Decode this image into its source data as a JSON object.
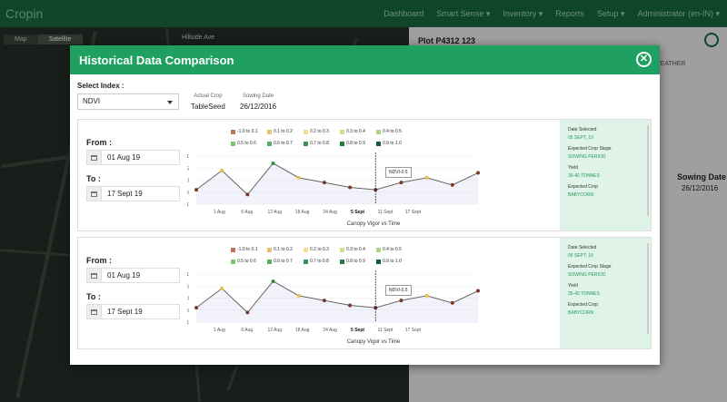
{
  "nav": {
    "brand": "Cropin",
    "links": [
      "Dashboard",
      "Smart Sense ▾",
      "Inventory ▾",
      "Reports",
      "Setup ▾",
      "Administrator (en-IN) ▾"
    ]
  },
  "map": {
    "tabs": [
      "Map",
      "Satellite"
    ],
    "labels": [
      "Hillside Ave"
    ]
  },
  "right_panel": {
    "plot_title": "Plot P4312 123",
    "weather_tab": "WEATHER",
    "sowing_label": "Sowing Date",
    "sowing_value": "26/12/2016"
  },
  "modal": {
    "title": "Historical Data Comparison",
    "select_label": "Select Index :",
    "select_value": "NDVI",
    "actual_crop_label": "Actual Crop",
    "actual_crop_value": "TableSeed",
    "sowing_date_label": "Sowing Date",
    "sowing_date_value": "26/12/2016"
  },
  "cards": [
    {
      "from_label": "From :",
      "from_value": "01 Aug 19",
      "to_label": "To :",
      "to_value": "17 Sept 19",
      "caption": "Canopy Vigor vs Time",
      "tooltip": "NDVI-0.5",
      "side": {
        "date_selected_label": "Date Selected",
        "date_selected_value": "05 SEPT, 19",
        "stage_label": "Expected Crop Stage",
        "stage_value": "SOWING PERIOD",
        "yield_label": "Yield",
        "yield_value": "35-40 TONNES",
        "crop_label": "Expected Crop",
        "crop_value": "BABYCORN"
      }
    },
    {
      "from_label": "From :",
      "from_value": "01 Aug 19",
      "to_label": "To :",
      "to_value": "17 Sept 19",
      "caption": "Canopy Vigor vs Time",
      "tooltip": "NDVI-0.5",
      "side": {
        "date_selected_label": "Date Selected",
        "date_selected_value": "05 SEPT, 19",
        "stage_label": "Expected Crop Stage",
        "stage_value": "SOWING PERIOD",
        "yield_label": "Yield",
        "yield_value": "35-40 TONNES",
        "crop_label": "Expected Crop",
        "crop_value": "BABYCORN"
      }
    }
  ],
  "legend": [
    {
      "label": "-1.0 to 0.1",
      "color": "#c0715a"
    },
    {
      "label": "0.1 to 0.2",
      "color": "#e8c07a"
    },
    {
      "label": "0.2 to 0.3",
      "color": "#f1dd8a"
    },
    {
      "label": "0.3 to 0.4",
      "color": "#cfe08a"
    },
    {
      "label": "0.4 to 0.5",
      "color": "#a9d67f"
    },
    {
      "label": "0.5 to 0.6",
      "color": "#7fc470"
    },
    {
      "label": "0.6 to 0.7",
      "color": "#57ae5f"
    },
    {
      "label": "0.7 to 0.8",
      "color": "#3a9453"
    },
    {
      "label": "0.8 to 0.9",
      "color": "#247a42"
    },
    {
      "label": "0.9 to 1.0",
      "color": "#145c31"
    }
  ],
  "chart_data": [
    {
      "type": "line",
      "caption": "Canopy Vigor vs Time",
      "x_ticks": [
        "1 Aug",
        "6 Aug",
        "12 Aug",
        "18 Aug",
        "24 Aug",
        "5 Sept",
        "11 Sept",
        "17 Sept"
      ],
      "y_ticks": [
        1,
        0.5,
        0,
        -0.5,
        -1
      ],
      "ylim": [
        -1,
        1
      ],
      "values": [
        -0.4,
        0.4,
        -0.6,
        0.7,
        0.1,
        -0.1,
        -0.3,
        -0.4,
        -0.1,
        0.1,
        -0.2,
        0.3
      ],
      "point_colors": [
        "#7a3a2a",
        "#e8c040",
        "#7a3a2a",
        "#2f8a4a",
        "#e8c040",
        "#7a3a2a",
        "#7a3a2a",
        "#5a2a2a",
        "#7a3a2a",
        "#e8c040",
        "#7a3a2a",
        "#7a3a2a"
      ],
      "marker": "5 Sept"
    },
    {
      "type": "line",
      "caption": "Canopy Vigor vs Time",
      "x_ticks": [
        "1 Aug",
        "6 Aug",
        "12 Aug",
        "18 Aug",
        "24 Aug",
        "5 Sept",
        "11 Sept",
        "17 Sept"
      ],
      "y_ticks": [
        1,
        0.5,
        0,
        -0.5,
        -1
      ],
      "ylim": [
        -1,
        1
      ],
      "values": [
        -0.4,
        0.4,
        -0.6,
        0.7,
        0.1,
        -0.1,
        -0.3,
        -0.4,
        -0.1,
        0.1,
        -0.2,
        0.3
      ],
      "point_colors": [
        "#7a3a2a",
        "#e8c040",
        "#7a3a2a",
        "#2f8a4a",
        "#e8c040",
        "#7a3a2a",
        "#7a3a2a",
        "#5a2a2a",
        "#7a3a2a",
        "#e8c040",
        "#7a3a2a",
        "#7a3a2a"
      ],
      "marker": "5 Sept"
    }
  ]
}
